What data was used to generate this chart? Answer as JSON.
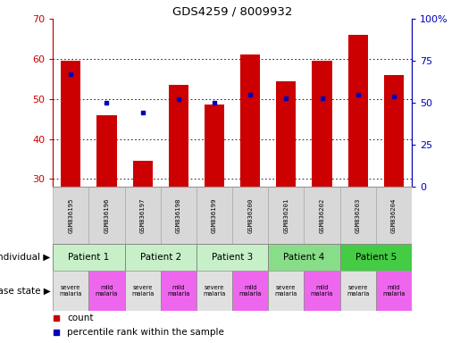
{
  "title": "GDS4259 / 8009932",
  "samples": [
    "GSM836195",
    "GSM836196",
    "GSM836197",
    "GSM836198",
    "GSM836199",
    "GSM836200",
    "GSM836201",
    "GSM836202",
    "GSM836203",
    "GSM836204"
  ],
  "counts": [
    59.5,
    46.0,
    34.5,
    53.5,
    48.5,
    61.0,
    54.5,
    59.5,
    66.0,
    56.0
  ],
  "percentiles": [
    67,
    50,
    44,
    52,
    50,
    55,
    53,
    53,
    55,
    54
  ],
  "ylim_left": [
    28,
    70
  ],
  "ylim_right": [
    0,
    100
  ],
  "yticks_left": [
    30,
    40,
    50,
    60,
    70
  ],
  "yticks_right": [
    0,
    25,
    50,
    75,
    100
  ],
  "ytick_labels_right": [
    "0",
    "25",
    "50",
    "75",
    "100%"
  ],
  "bar_color": "#cc0000",
  "dot_color": "#0000bb",
  "bar_width": 0.55,
  "patients": [
    {
      "label": "Patient 1",
      "cols": [
        0,
        1
      ],
      "color": "#c8f0c8"
    },
    {
      "label": "Patient 2",
      "cols": [
        2,
        3
      ],
      "color": "#c8f0c8"
    },
    {
      "label": "Patient 3",
      "cols": [
        4,
        5
      ],
      "color": "#c8f0c8"
    },
    {
      "label": "Patient 4",
      "cols": [
        6,
        7
      ],
      "color": "#88dd88"
    },
    {
      "label": "Patient 5",
      "cols": [
        8,
        9
      ],
      "color": "#44cc44"
    }
  ],
  "disease_states": [
    {
      "label": "severe\nmalaria",
      "col": 0,
      "color": "#e0e0e0"
    },
    {
      "label": "mild\nmalaria",
      "col": 1,
      "color": "#ee66ee"
    },
    {
      "label": "severe\nmalaria",
      "col": 2,
      "color": "#e0e0e0"
    },
    {
      "label": "mild\nmalaria",
      "col": 3,
      "color": "#ee66ee"
    },
    {
      "label": "severe\nmalaria",
      "col": 4,
      "color": "#e0e0e0"
    },
    {
      "label": "mild\nmalaria",
      "col": 5,
      "color": "#ee66ee"
    },
    {
      "label": "severe\nmalaria",
      "col": 6,
      "color": "#e0e0e0"
    },
    {
      "label": "mild\nmalaria",
      "col": 7,
      "color": "#ee66ee"
    },
    {
      "label": "severe\nmalaria",
      "col": 8,
      "color": "#e0e0e0"
    },
    {
      "label": "mild\nmalaria",
      "col": 9,
      "color": "#ee66ee"
    }
  ],
  "legend_count_color": "#cc0000",
  "legend_dot_color": "#0000bb",
  "legend_count_label": "count",
  "legend_dot_label": "percentile rank within the sample",
  "individual_label": "individual",
  "disease_label": "disease state",
  "axis_left_color": "#cc0000",
  "axis_right_color": "#0000bb",
  "bg_color": "#ffffff",
  "sample_bg_color": "#d8d8d8",
  "sample_border_color": "#aaaaaa"
}
